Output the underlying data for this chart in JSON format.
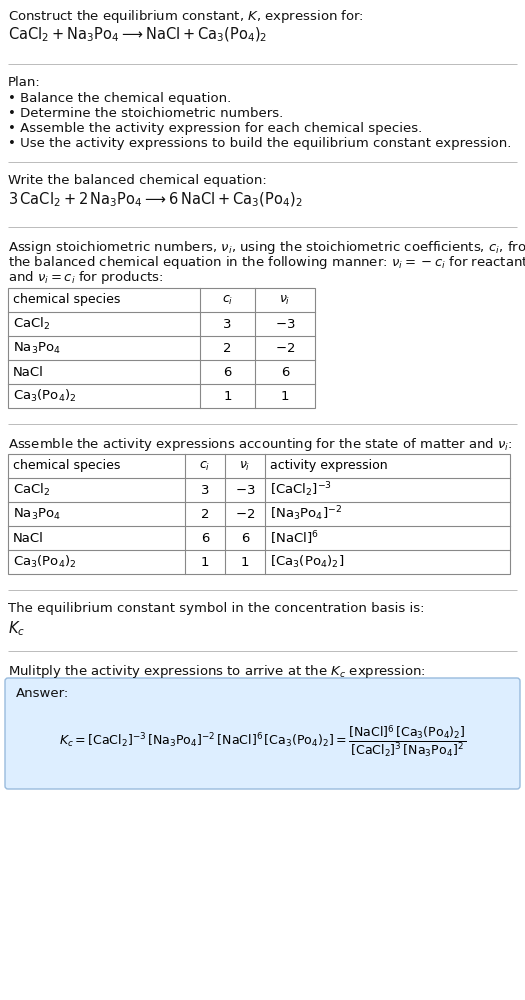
{
  "title_line1": "Construct the equilibrium constant, $K$, expression for:",
  "title_line2": "$\\mathrm{CaCl_2 + Na_3Po_4 \\longrightarrow NaCl + Ca_3(Po_4)_2}$",
  "plan_header": "Plan:",
  "plan_bullets": [
    "• Balance the chemical equation.",
    "• Determine the stoichiometric numbers.",
    "• Assemble the activity expression for each chemical species.",
    "• Use the activity expressions to build the equilibrium constant expression."
  ],
  "balanced_header": "Write the balanced chemical equation:",
  "balanced_eq": "$3\\,\\mathrm{CaCl_2} + 2\\,\\mathrm{Na_3Po_4} \\longrightarrow 6\\,\\mathrm{NaCl} + \\mathrm{Ca_3(Po_4)_2}$",
  "stoich_intro_lines": [
    "Assign stoichiometric numbers, $\\nu_i$, using the stoichiometric coefficients, $c_i$, from",
    "the balanced chemical equation in the following manner: $\\nu_i = -c_i$ for reactants",
    "and $\\nu_i = c_i$ for products:"
  ],
  "table1_headers": [
    "chemical species",
    "$c_i$",
    "$\\nu_i$"
  ],
  "table1_rows": [
    [
      "$\\mathrm{CaCl_2}$",
      "3",
      "$-3$"
    ],
    [
      "$\\mathrm{Na_3Po_4}$",
      "2",
      "$-2$"
    ],
    [
      "NaCl",
      "6",
      "6"
    ],
    [
      "$\\mathrm{Ca_3(Po_4)_2}$",
      "1",
      "1"
    ]
  ],
  "activity_intro": "Assemble the activity expressions accounting for the state of matter and $\\nu_i$:",
  "table2_headers": [
    "chemical species",
    "$c_i$",
    "$\\nu_i$",
    "activity expression"
  ],
  "table2_rows": [
    [
      "$\\mathrm{CaCl_2}$",
      "3",
      "$-3$",
      "$[\\mathrm{CaCl_2}]^{-3}$"
    ],
    [
      "$\\mathrm{Na_3Po_4}$",
      "2",
      "$-2$",
      "$[\\mathrm{Na_3Po_4}]^{-2}$"
    ],
    [
      "NaCl",
      "6",
      "6",
      "$[\\mathrm{NaCl}]^{6}$"
    ],
    [
      "$\\mathrm{Ca_3(Po_4)_2}$",
      "1",
      "1",
      "$[\\mathrm{Ca_3(Po_4)_2}]$"
    ]
  ],
  "kc_symbol_intro": "The equilibrium constant symbol in the concentration basis is:",
  "kc_symbol": "$K_c$",
  "multiply_intro": "Mulitply the activity expressions to arrive at the $K_c$ expression:",
  "answer_label": "Answer:",
  "answer_eq": "$K_c = [\\mathrm{CaCl_2}]^{-3}\\,[\\mathrm{Na_3Po_4}]^{-2}\\,[\\mathrm{NaCl}]^{6}\\,[\\mathrm{Ca_3(Po_4)_2}] = \\dfrac{[\\mathrm{NaCl}]^{6}\\,[\\mathrm{Ca_3(Po_4)_2}]}{[\\mathrm{CaCl_2}]^{3}\\,[\\mathrm{Na_3Po_4}]^{2}}$",
  "bg_color": "#ffffff",
  "answer_bg_color": "#ddeeff",
  "separator_color": "#bbbbbb"
}
